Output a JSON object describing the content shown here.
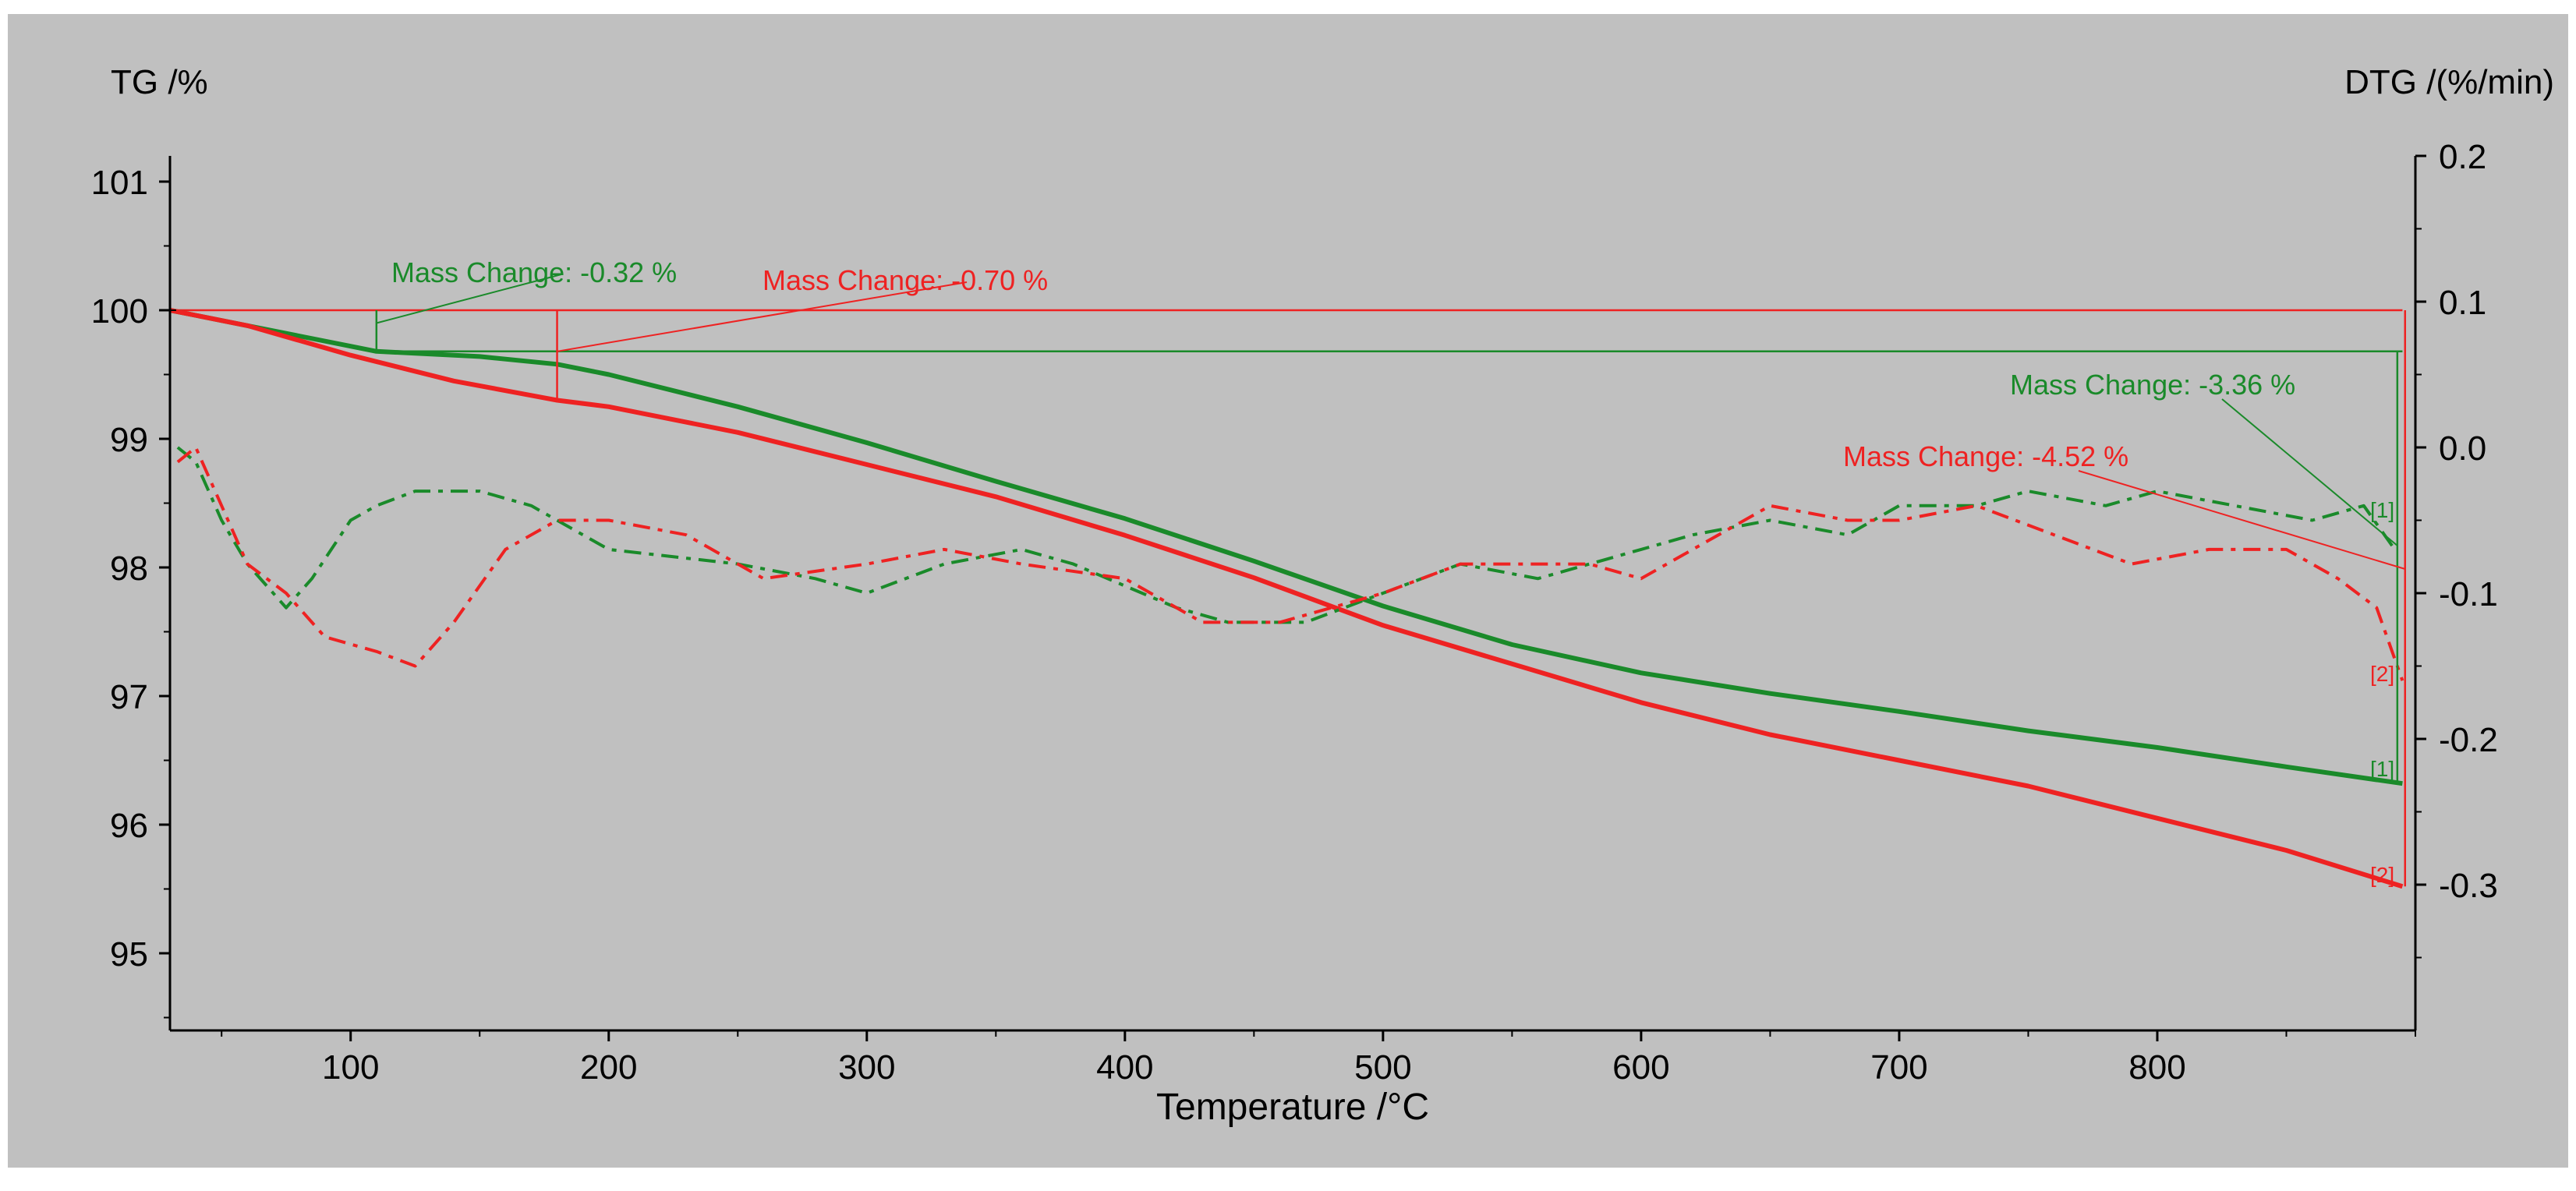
{
  "chart_data": {
    "type": "line",
    "xlabel": "Temperature /°C",
    "ylabel_left": "TG /%",
    "ylabel_right": "DTG /(%/min)",
    "xlim": [
      30,
      900
    ],
    "ylim_left": [
      94.4,
      101.2
    ],
    "ylim_right": [
      -0.4,
      0.2
    ],
    "x_ticks": [
      100,
      200,
      300,
      400,
      500,
      600,
      700,
      800
    ],
    "y_left_ticks": [
      95,
      96,
      97,
      98,
      99,
      100,
      101
    ],
    "y_right_ticks": [
      0.2,
      0.1,
      0.0,
      -0.1,
      -0.2,
      -0.3
    ],
    "y_right_tick_labels": [
      "0.2",
      "0.1",
      "0.0",
      "-0.1",
      "-0.2",
      "-0.3"
    ],
    "colors": {
      "green": "#1a8a2a",
      "red": "#ee2222",
      "background": "#c0c0c0",
      "axis": "#000000"
    },
    "series": [
      {
        "name": "TG [1]",
        "axis": "left",
        "color": "#1a8a2a",
        "style": "solid",
        "x": [
          30,
          60,
          100,
          110,
          150,
          180,
          200,
          250,
          300,
          350,
          400,
          450,
          500,
          550,
          600,
          650,
          700,
          750,
          800,
          850,
          895
        ],
        "values": [
          100.0,
          99.88,
          99.72,
          99.68,
          99.64,
          99.58,
          99.5,
          99.25,
          98.97,
          98.67,
          98.38,
          98.05,
          97.7,
          97.4,
          97.18,
          97.02,
          96.88,
          96.73,
          96.6,
          96.45,
          96.32
        ]
      },
      {
        "name": "TG [2]",
        "axis": "left",
        "color": "#ee2222",
        "style": "solid",
        "x": [
          30,
          60,
          100,
          140,
          180,
          200,
          250,
          300,
          350,
          400,
          450,
          500,
          550,
          600,
          650,
          700,
          750,
          800,
          850,
          895
        ],
        "values": [
          100.0,
          99.88,
          99.65,
          99.45,
          99.3,
          99.25,
          99.05,
          98.8,
          98.55,
          98.25,
          97.92,
          97.55,
          97.25,
          96.95,
          96.7,
          96.5,
          96.3,
          96.05,
          95.8,
          95.52
        ]
      },
      {
        "name": "DTG [1]",
        "axis": "right",
        "color": "#1a8a2a",
        "style": "dashed",
        "x": [
          33,
          40,
          50,
          60,
          75,
          85,
          100,
          110,
          125,
          150,
          170,
          200,
          250,
          280,
          300,
          330,
          360,
          380,
          420,
          440,
          470,
          500,
          530,
          560,
          600,
          620,
          650,
          680,
          700,
          730,
          750,
          780,
          800,
          830,
          860,
          880,
          892
        ],
        "values": [
          0.0,
          -0.01,
          -0.05,
          -0.08,
          -0.11,
          -0.09,
          -0.05,
          -0.04,
          -0.03,
          -0.03,
          -0.04,
          -0.07,
          -0.08,
          -0.09,
          -0.1,
          -0.08,
          -0.07,
          -0.08,
          -0.11,
          -0.12,
          -0.12,
          -0.1,
          -0.08,
          -0.09,
          -0.07,
          -0.06,
          -0.05,
          -0.06,
          -0.04,
          -0.04,
          -0.03,
          -0.04,
          -0.03,
          -0.04,
          -0.05,
          -0.04,
          -0.07
        ]
      },
      {
        "name": "DTG [2]",
        "axis": "right",
        "color": "#ee2222",
        "style": "dashed",
        "x": [
          33,
          40,
          50,
          60,
          75,
          90,
          110,
          125,
          140,
          160,
          180,
          200,
          230,
          260,
          300,
          330,
          360,
          400,
          430,
          460,
          500,
          530,
          550,
          580,
          600,
          630,
          650,
          680,
          700,
          730,
          760,
          790,
          820,
          850,
          870,
          885,
          895
        ],
        "values": [
          -0.01,
          0.0,
          -0.04,
          -0.08,
          -0.1,
          -0.13,
          -0.14,
          -0.15,
          -0.12,
          -0.07,
          -0.05,
          -0.05,
          -0.06,
          -0.09,
          -0.08,
          -0.07,
          -0.08,
          -0.09,
          -0.12,
          -0.12,
          -0.1,
          -0.08,
          -0.08,
          -0.08,
          -0.09,
          -0.06,
          -0.04,
          -0.05,
          -0.05,
          -0.04,
          -0.06,
          -0.08,
          -0.07,
          -0.07,
          -0.09,
          -0.11,
          -0.16
        ]
      }
    ],
    "annotations": [
      {
        "id": "mc-green-1",
        "text": "Mass Change: -0.32 %",
        "color": "#1a8a2a"
      },
      {
        "id": "mc-red-1",
        "text": "Mass Change: -0.70 %",
        "color": "#ee2222"
      },
      {
        "id": "mc-green-2",
        "text": "Mass Change: -3.36 %",
        "color": "#1a8a2a"
      },
      {
        "id": "mc-red-2",
        "text": "Mass Change: -4.52 %",
        "color": "#ee2222"
      }
    ],
    "curve_tags": [
      {
        "id": "tag-tg1",
        "text": "[1]",
        "color": "#1a8a2a"
      },
      {
        "id": "tag-tg2",
        "text": "[2]",
        "color": "#ee2222"
      },
      {
        "id": "tag-dtg1",
        "text": "[1]",
        "color": "#1a8a2a"
      },
      {
        "id": "tag-dtg2",
        "text": "[2]",
        "color": "#ee2222"
      }
    ]
  }
}
